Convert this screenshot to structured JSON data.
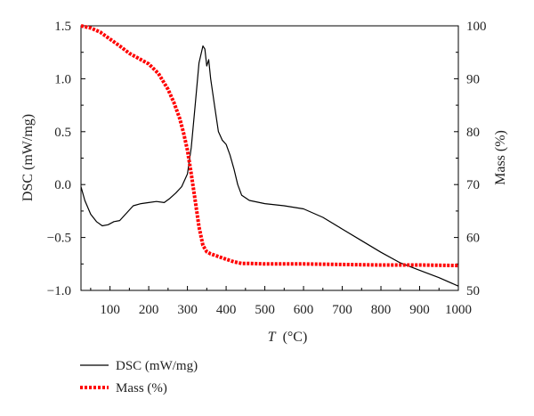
{
  "chart_data": {
    "type": "line",
    "xlabel_symbol": "T",
    "xlabel_unit": "(°C)",
    "ylabel_left": "DSC (mW/mg)",
    "ylabel_right": "Mass (%)",
    "xlim": [
      25,
      1000
    ],
    "ylim_left": [
      -1.0,
      1.5
    ],
    "ylim_right": [
      50,
      100
    ],
    "x_ticks": [
      100,
      200,
      300,
      400,
      500,
      600,
      700,
      800,
      900,
      1000
    ],
    "x_tick_labels": [
      "100",
      "200",
      "300",
      "400",
      "500",
      "600",
      "700",
      "800",
      "900",
      "1000"
    ],
    "y_left_ticks": [
      -1.0,
      -0.5,
      0.0,
      0.5,
      1.0,
      1.5
    ],
    "y_left_tick_labels": [
      "−1.0",
      "−0.5",
      "0.0",
      "0.5",
      "1.0",
      "1.5"
    ],
    "y_right_ticks": [
      50,
      60,
      70,
      80,
      90,
      100
    ],
    "y_right_tick_labels": [
      "50",
      "60",
      "70",
      "80",
      "90",
      "100"
    ],
    "grid": false,
    "legend_position": "bottom-left, below plot",
    "series": [
      {
        "name": "DSC (mW/mg)",
        "axis": "left",
        "color": "#000000",
        "style": "solid",
        "x": [
          25,
          35,
          50,
          65,
          80,
          95,
          110,
          125,
          140,
          160,
          180,
          200,
          220,
          240,
          255,
          270,
          285,
          300,
          310,
          320,
          330,
          340,
          345,
          350,
          355,
          360,
          370,
          380,
          390,
          400,
          410,
          420,
          430,
          440,
          460,
          500,
          550,
          600,
          650,
          700,
          750,
          800,
          850,
          900,
          950,
          1000
        ],
        "y": [
          -0.02,
          -0.15,
          -0.28,
          -0.35,
          -0.39,
          -0.38,
          -0.35,
          -0.34,
          -0.28,
          -0.2,
          -0.18,
          -0.17,
          -0.16,
          -0.17,
          -0.13,
          -0.08,
          -0.02,
          0.1,
          0.35,
          0.75,
          1.15,
          1.31,
          1.28,
          1.12,
          1.18,
          1.0,
          0.75,
          0.5,
          0.42,
          0.38,
          0.28,
          0.15,
          0.0,
          -0.1,
          -0.15,
          -0.18,
          -0.2,
          -0.23,
          -0.31,
          -0.42,
          -0.53,
          -0.64,
          -0.74,
          -0.81,
          -0.88,
          -0.96
        ]
      },
      {
        "name": "Mass (%)",
        "axis": "right",
        "color": "#ff0000",
        "style": "dotted",
        "x": [
          25,
          50,
          75,
          100,
          125,
          150,
          175,
          200,
          225,
          250,
          265,
          280,
          290,
          300,
          310,
          320,
          330,
          340,
          350,
          360,
          380,
          400,
          420,
          440,
          460,
          500,
          600,
          700,
          800,
          900,
          1000
        ],
        "y": [
          100,
          99.6,
          98.8,
          97.5,
          96.2,
          94.8,
          93.8,
          92.8,
          91.0,
          88.0,
          85.5,
          82.5,
          79.8,
          76.5,
          72.0,
          67.0,
          62.0,
          58.5,
          57.3,
          56.9,
          56.4,
          55.9,
          55.4,
          55.1,
          55.1,
          55.0,
          55.0,
          54.9,
          54.8,
          54.8,
          54.7
        ]
      }
    ]
  }
}
